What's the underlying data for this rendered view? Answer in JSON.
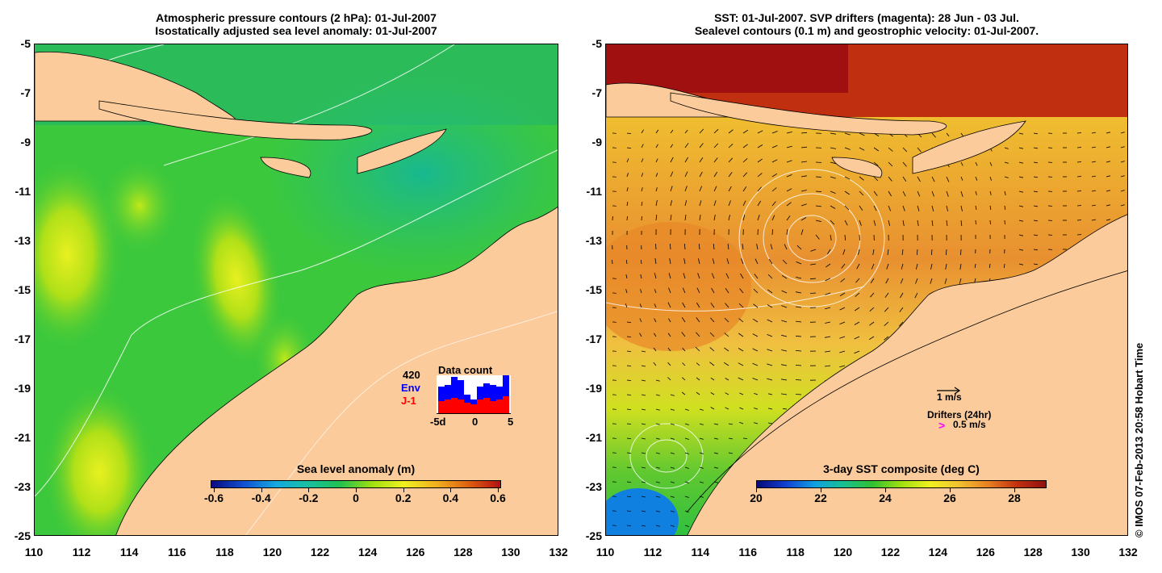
{
  "left_panel": {
    "title_line1": "Atmospheric pressure contours (2 hPa): 01-Jul-2007",
    "title_line2": "Isostatically adjusted sea level anomaly: 01-Jul-2007",
    "colorbar": {
      "title": "Sea level anomaly (m)",
      "tick_labels": [
        "-0.6",
        "-0.4",
        "-0.2",
        "0",
        "0.2",
        "0.4",
        "0.6"
      ],
      "colors": [
        "#0a0a80",
        "#1050d0",
        "#15a8e0",
        "#18c0a0",
        "#20c050",
        "#9ee010",
        "#f0f020",
        "#f0b020",
        "#e06010",
        "#b01010"
      ]
    },
    "data_count": {
      "title": "Data count",
      "max_label": "420",
      "env_label": "Env",
      "j1_label": "J-1",
      "x_labels": [
        "-5d",
        "0",
        "5"
      ],
      "env_color": "#0000ff",
      "j1_color": "#ff0000"
    }
  },
  "right_panel": {
    "title_line1": "SST: 01-Jul-2007. SVP drifters (magenta): 28 Jun - 03 Jul.",
    "title_line2": "Sealevel contours (0.1 m) and geostrophic velocity: 01-Jul-2007.",
    "colorbar": {
      "title": "3-day SST composite (deg C)",
      "tick_labels": [
        "20",
        "22",
        "24",
        "26",
        "28"
      ],
      "colors": [
        "#08087a",
        "#1040d0",
        "#10a0e0",
        "#18c090",
        "#30c030",
        "#a0e010",
        "#f0f020",
        "#f0c030",
        "#e88020",
        "#c03010",
        "#901010"
      ]
    },
    "legend": {
      "velocity_label": "1 m/s",
      "drifters_label": "Drifters (24hr)",
      "drifter_speed_label": "0.5 m/s",
      "drifter_color": "#ff00ff"
    }
  },
  "axes": {
    "y_labels": [
      "-5",
      "-7",
      "-9",
      "-11",
      "-13",
      "-15",
      "-17",
      "-19",
      "-21",
      "-23",
      "-25"
    ],
    "x_labels": [
      "110",
      "112",
      "114",
      "116",
      "118",
      "120",
      "122",
      "124",
      "126",
      "128",
      "130",
      "132"
    ]
  },
  "colors": {
    "land": "#fbcb9b",
    "ocean_green": "#3cc83c",
    "sst_orange": "#f0a030"
  },
  "credit": "© IMOS 07-Feb-2013 20:58 Hobart Time"
}
